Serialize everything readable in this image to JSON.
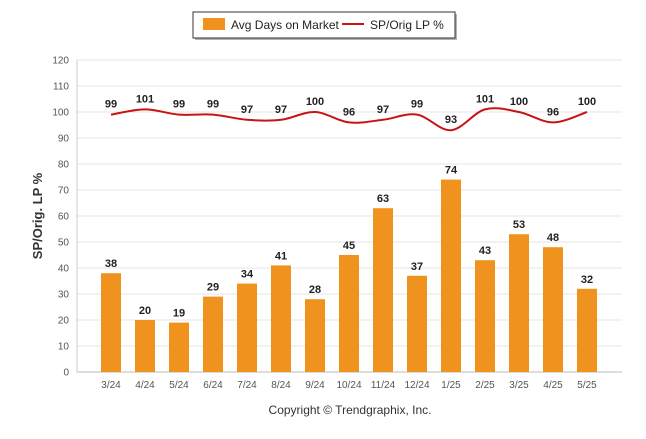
{
  "chart_data": {
    "type": "bar",
    "categories": [
      "3/24",
      "4/24",
      "5/24",
      "6/24",
      "7/24",
      "8/24",
      "9/24",
      "10/24",
      "11/24",
      "12/24",
      "1/25",
      "2/25",
      "3/25",
      "4/25",
      "5/25"
    ],
    "series": [
      {
        "name": "Avg Days on Market",
        "type": "bar",
        "color": "#f0921e",
        "values": [
          38,
          20,
          19,
          29,
          34,
          41,
          28,
          45,
          63,
          37,
          74,
          43,
          53,
          48,
          32
        ]
      },
      {
        "name": "SP/Orig LP %",
        "type": "line",
        "color": "#c81414",
        "values": [
          99,
          101,
          99,
          99,
          97,
          97,
          100,
          96,
          97,
          99,
          93,
          101,
          100,
          96,
          100
        ]
      }
    ],
    "ylabel": "SP/Orig. LP %",
    "ylim": [
      0,
      120
    ],
    "yticks": [
      0,
      10,
      20,
      30,
      40,
      50,
      60,
      70,
      80,
      90,
      100,
      110,
      120
    ],
    "grid": true,
    "legend": "top-center",
    "copyright": "Copyright © Trendgraphix, Inc."
  }
}
